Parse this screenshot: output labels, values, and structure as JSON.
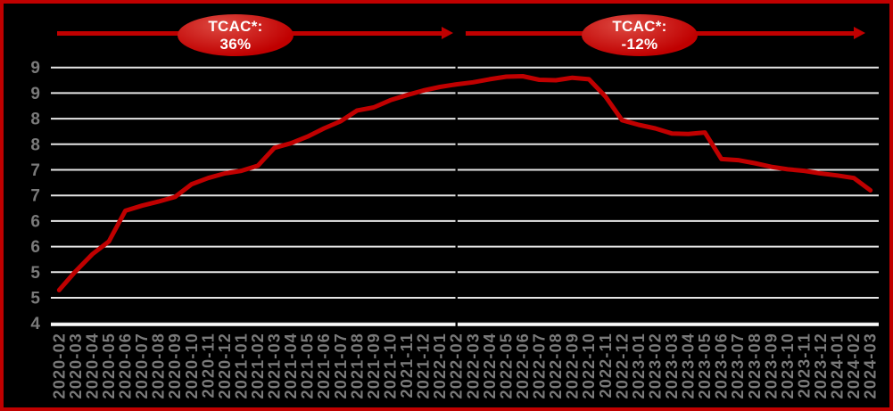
{
  "annotations": {
    "growth": {
      "title": "TCAC*:",
      "value": "36%"
    },
    "decline": {
      "title": "TCAC*:",
      "value": "-12%"
    }
  },
  "colors": {
    "accent_red": "#c00000",
    "background": "#000000",
    "border": "#c00000",
    "gridline": "#e6e6e6",
    "axis_line": "#ffffff",
    "tick_label": "#7a7a7a",
    "badge_text": "#ffffff",
    "badge_highlight": "#dd4a42",
    "divider": "#000000"
  },
  "chart_data": {
    "type": "line",
    "title": "",
    "categories": [
      "2020-02",
      "2020-03",
      "2020-04",
      "2020-05",
      "2020-06",
      "2020-07",
      "2020-08",
      "2020-09",
      "2020-10",
      "2020-11",
      "2020-12",
      "2021-01",
      "2021-02",
      "2021-03",
      "2021-04",
      "2021-05",
      "2021-06",
      "2021-07",
      "2021-08",
      "2021-09",
      "2021-10",
      "2021-11",
      "2021-12",
      "2022-01",
      "2022-02",
      "2022-03",
      "2022-04",
      "2022-05",
      "2022-06",
      "2022-07",
      "2022-08",
      "2022-09",
      "2022-10",
      "2022-11",
      "2022-12",
      "2023-01",
      "2023-02",
      "2023-03",
      "2023-04",
      "2023-05",
      "2023-06",
      "2023-07",
      "2023-08",
      "2023-09",
      "2023-10",
      "2023-11",
      "2023-12",
      "2024-01",
      "2024-02",
      "2024-03"
    ],
    "series": [
      {
        "name": "",
        "color": "#c00000",
        "values": [
          5.15,
          5.52,
          5.85,
          6.1,
          6.7,
          6.8,
          6.88,
          6.97,
          7.22,
          7.34,
          7.43,
          7.48,
          7.58,
          7.93,
          8.02,
          8.15,
          8.31,
          8.45,
          8.66,
          8.72,
          8.86,
          8.96,
          9.05,
          9.12,
          9.17,
          9.21,
          9.27,
          9.32,
          9.33,
          9.26,
          9.25,
          9.3,
          9.27,
          8.93,
          8.47,
          8.38,
          8.31,
          8.21,
          8.2,
          8.23,
          7.71,
          7.69,
          7.63,
          7.56,
          7.51,
          7.48,
          7.43,
          7.39,
          7.34,
          7.1
        ]
      }
    ],
    "y_axis": {
      "min": 4.5,
      "max": 9.5,
      "tick_interval": 0.5,
      "tick_labels_top_to_bottom": [
        "9",
        "9",
        "8",
        "8",
        "7",
        "7",
        "6",
        "6",
        "5",
        "5",
        "4"
      ]
    },
    "x_axis": {
      "tick_rotation_deg": 90
    },
    "grid": "horizontal light gridlines on black background",
    "legend": "none",
    "divider_at_category": "2022-02"
  }
}
